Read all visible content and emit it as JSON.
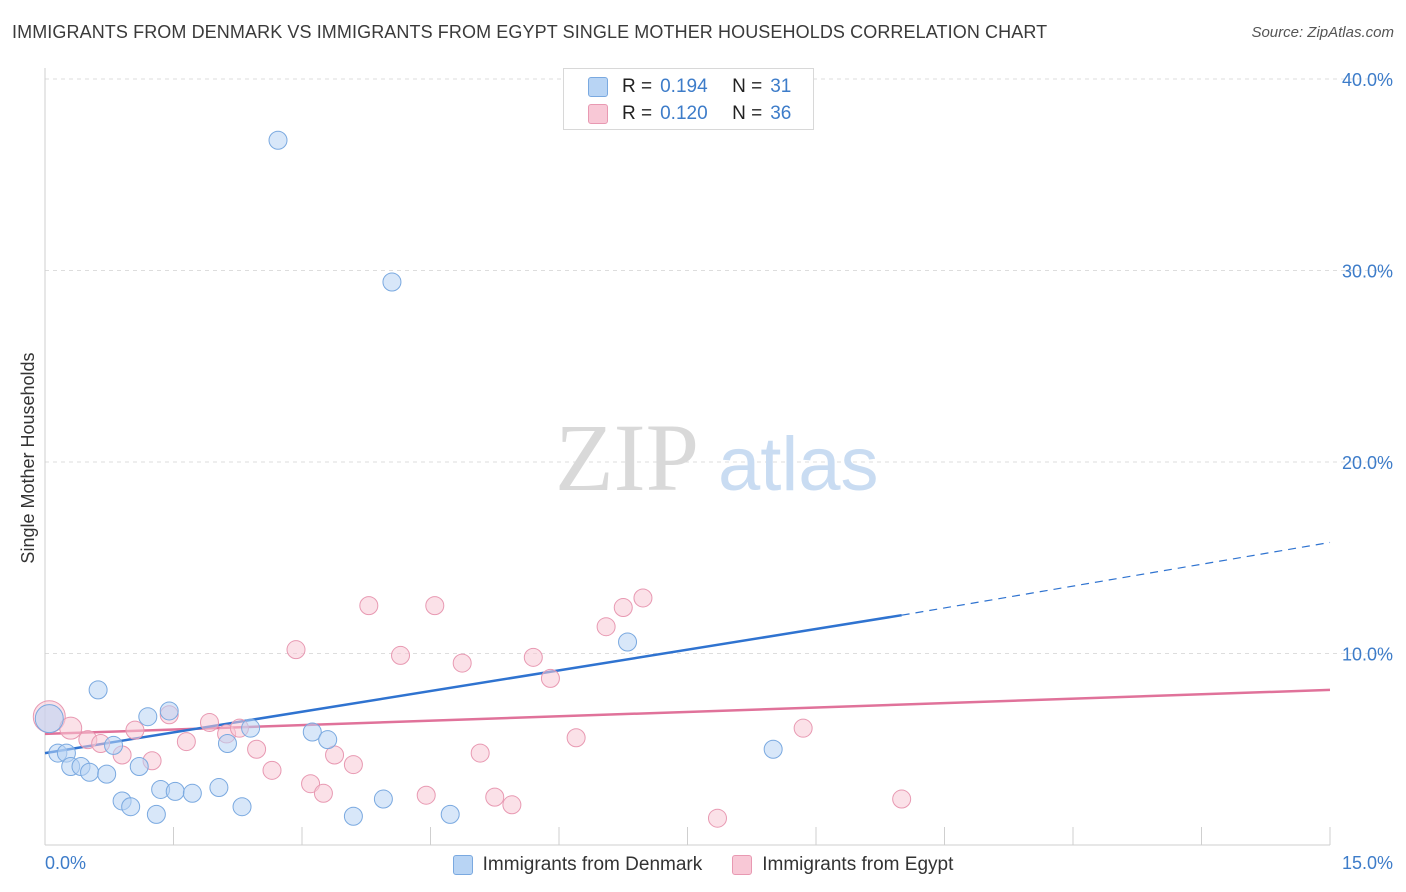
{
  "title": "IMMIGRANTS FROM DENMARK VS IMMIGRANTS FROM EGYPT SINGLE MOTHER HOUSEHOLDS CORRELATION CHART",
  "source": "Source: ZipAtlas.com",
  "watermark": {
    "zip": "ZIP",
    "atlas": "atlas"
  },
  "stats": [
    {
      "r_label": "R =",
      "r_value": "0.194",
      "n_label": "N =",
      "n_value": "31"
    },
    {
      "r_label": "R =",
      "r_value": "0.120",
      "n_label": "N =",
      "n_value": "36"
    }
  ],
  "legend": {
    "denmark": "Immigrants from Denmark",
    "egypt": "Immigrants from Egypt"
  },
  "colors": {
    "denmark_fill": "#b8d4f4",
    "denmark_stroke": "#7aa9e0",
    "denmark_line": "#2f73d0",
    "egypt_fill": "#f8c8d6",
    "egypt_stroke": "#e899b2",
    "egypt_line": "#e0729a",
    "tick_text": "#3d7cc9",
    "grid": "#dddddd"
  },
  "chart_data": {
    "type": "scatter",
    "title": "IMMIGRANTS FROM DENMARK VS IMMIGRANTS FROM EGYPT SINGLE MOTHER HOUSEHOLDS CORRELATION CHART",
    "xlabel": "",
    "ylabel": "Single Mother Households",
    "xlim": [
      0,
      15
    ],
    "ylim": [
      0,
      40
    ],
    "x_tick_labels": [
      "0.0%",
      "15.0%"
    ],
    "y_ticks": [
      10,
      20,
      30,
      40
    ],
    "y_tick_labels": [
      "10.0%",
      "20.0%",
      "30.0%",
      "40.0%"
    ],
    "grid": true,
    "series": [
      {
        "name": "Immigrants from Denmark",
        "r": 0.194,
        "n": 31,
        "points": [
          [
            0.05,
            6.6,
            14
          ],
          [
            0.15,
            4.8,
            9
          ],
          [
            0.25,
            4.8,
            9
          ],
          [
            0.3,
            4.1,
            9
          ],
          [
            0.42,
            4.1,
            9
          ],
          [
            0.52,
            3.8,
            9
          ],
          [
            0.62,
            8.1,
            9
          ],
          [
            0.72,
            3.7,
            9
          ],
          [
            0.8,
            5.2,
            9
          ],
          [
            0.9,
            2.3,
            9
          ],
          [
            1.0,
            2.0,
            9
          ],
          [
            1.1,
            4.1,
            9
          ],
          [
            1.2,
            6.7,
            9
          ],
          [
            1.3,
            1.6,
            9
          ],
          [
            1.35,
            2.9,
            9
          ],
          [
            1.45,
            7.0,
            9
          ],
          [
            1.52,
            2.8,
            9
          ],
          [
            1.72,
            2.7,
            9
          ],
          [
            2.03,
            3.0,
            9
          ],
          [
            2.13,
            5.3,
            9
          ],
          [
            2.3,
            2.0,
            9
          ],
          [
            2.4,
            6.1,
            9
          ],
          [
            2.72,
            36.8,
            9
          ],
          [
            3.12,
            5.9,
            9
          ],
          [
            3.3,
            5.5,
            9
          ],
          [
            3.6,
            1.5,
            9
          ],
          [
            3.95,
            2.4,
            9
          ],
          [
            4.05,
            29.4,
            9
          ],
          [
            4.73,
            1.6,
            9
          ],
          [
            6.8,
            10.6,
            9
          ],
          [
            8.5,
            5.0,
            9
          ]
        ],
        "trend": {
          "x": [
            0,
            10
          ],
          "y": [
            4.8,
            12.0
          ],
          "dashed_to": [
            15,
            15.8
          ]
        }
      },
      {
        "name": "Immigrants from Egypt",
        "r": 0.12,
        "n": 36,
        "points": [
          [
            0.05,
            6.7,
            16
          ],
          [
            0.3,
            6.1,
            11
          ],
          [
            0.5,
            5.5,
            9
          ],
          [
            0.65,
            5.3,
            9
          ],
          [
            0.9,
            4.7,
            9
          ],
          [
            1.05,
            6.0,
            9
          ],
          [
            1.25,
            4.4,
            9
          ],
          [
            1.45,
            6.8,
            9
          ],
          [
            1.65,
            5.4,
            9
          ],
          [
            1.92,
            6.4,
            9
          ],
          [
            2.12,
            5.8,
            9
          ],
          [
            2.27,
            6.1,
            9
          ],
          [
            2.47,
            5.0,
            9
          ],
          [
            2.65,
            3.9,
            9
          ],
          [
            2.93,
            10.2,
            9
          ],
          [
            3.1,
            3.2,
            9
          ],
          [
            3.25,
            2.7,
            9
          ],
          [
            3.38,
            4.7,
            9
          ],
          [
            3.6,
            4.2,
            9
          ],
          [
            3.78,
            12.5,
            9
          ],
          [
            4.15,
            9.9,
            9
          ],
          [
            4.45,
            2.6,
            9
          ],
          [
            4.55,
            12.5,
            9
          ],
          [
            4.87,
            9.5,
            9
          ],
          [
            5.08,
            4.8,
            9
          ],
          [
            5.25,
            2.5,
            9
          ],
          [
            5.45,
            2.1,
            9
          ],
          [
            5.7,
            9.8,
            9
          ],
          [
            5.9,
            8.7,
            9
          ],
          [
            6.2,
            5.6,
            9
          ],
          [
            6.55,
            11.4,
            9
          ],
          [
            6.75,
            12.4,
            9
          ],
          [
            6.98,
            12.9,
            9
          ],
          [
            7.85,
            1.4,
            9
          ],
          [
            8.85,
            6.1,
            9
          ],
          [
            10.0,
            2.4,
            9
          ]
        ],
        "trend": {
          "x": [
            0,
            15
          ],
          "y": [
            5.8,
            8.1
          ]
        }
      }
    ]
  }
}
